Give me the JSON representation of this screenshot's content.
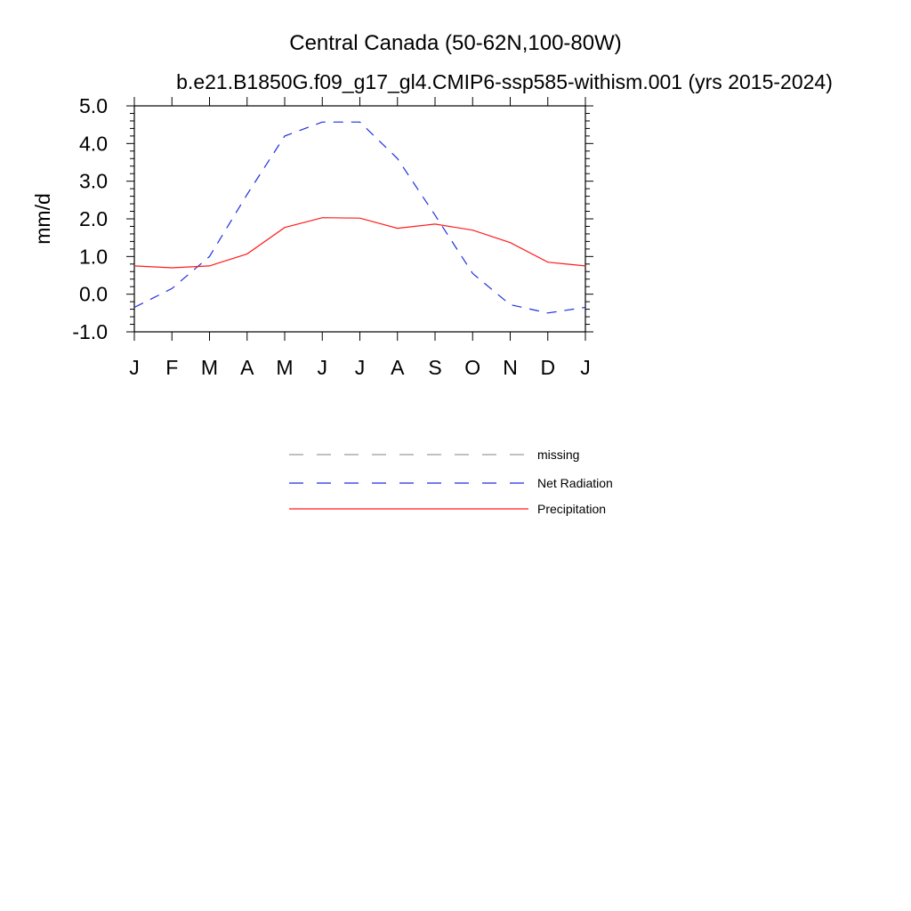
{
  "chart_data": {
    "type": "line",
    "title": "Central Canada (50-62N,100-80W)",
    "subtitle": "b.e21.B1850G.f09_g17_gl4.CMIP6-ssp585-withism.001 (yrs 2015-2024)",
    "xlabel": "",
    "ylabel": "mm/d",
    "x_tick_labels": [
      "J",
      "F",
      "M",
      "A",
      "M",
      "J",
      "J",
      "A",
      "S",
      "O",
      "N",
      "D",
      "J"
    ],
    "y_tick_labels": [
      "5.0",
      "4.0",
      "3.0",
      "2.0",
      "1.0",
      "0.0",
      "-1.0"
    ],
    "y_ticks": [
      5,
      4,
      3,
      2,
      1,
      0,
      -1
    ],
    "ylim": [
      -1,
      5
    ],
    "grid": false,
    "legend_position": "below",
    "series": [
      {
        "name": "missing",
        "color": "#9a9a9a",
        "dash": "dashed",
        "values": []
      },
      {
        "name": "Net Radiation",
        "color": "#1f2fe0",
        "dash": "dashed",
        "values": [
          -0.35,
          0.15,
          1.0,
          2.65,
          4.2,
          4.57,
          4.57,
          3.6,
          2.1,
          0.55,
          -0.28,
          -0.5,
          -0.35
        ]
      },
      {
        "name": "Precipitation",
        "color": "#ff1a1a",
        "dash": "solid",
        "values": [
          0.75,
          0.7,
          0.75,
          1.07,
          1.77,
          2.03,
          2.02,
          1.75,
          1.86,
          1.7,
          1.37,
          0.85,
          0.75
        ]
      }
    ]
  }
}
